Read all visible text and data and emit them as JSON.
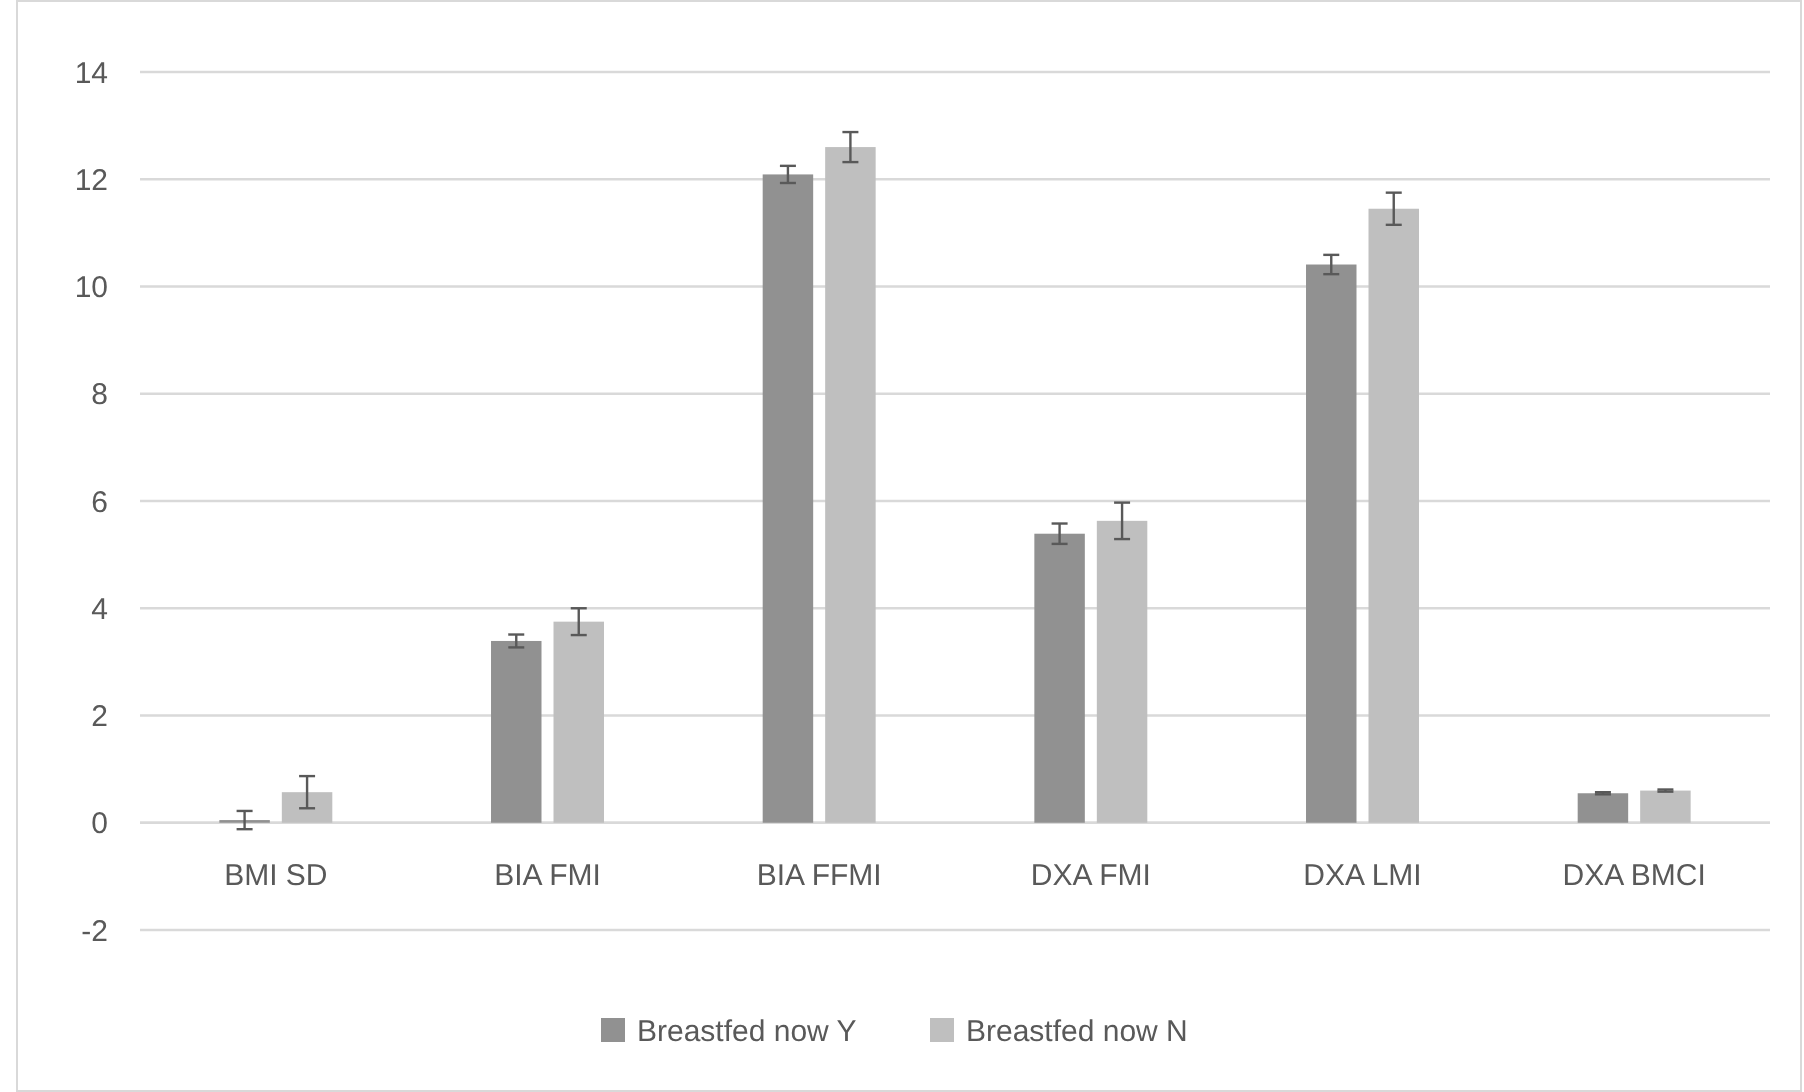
{
  "chart_data": {
    "type": "bar",
    "categories": [
      "BMI SD",
      "BIA FMI",
      "BIA FFMI",
      "DXA FMI",
      "DXA LMI",
      "DXA BMCI"
    ],
    "series": [
      {
        "name": "Breastfed now Y",
        "color": "#919191",
        "values": [
          0.05,
          3.39,
          12.09,
          5.39,
          10.41,
          0.55
        ],
        "errors": [
          0.17,
          0.12,
          0.16,
          0.19,
          0.18,
          0.02
        ]
      },
      {
        "name": "Breastfed now N",
        "color": "#bfbfbf",
        "values": [
          0.57,
          3.75,
          12.6,
          5.63,
          11.45,
          0.6
        ],
        "errors": [
          0.3,
          0.25,
          0.28,
          0.34,
          0.3,
          0.02
        ]
      }
    ],
    "ylim": [
      -2,
      14
    ],
    "yticks": [
      -2,
      0,
      2,
      4,
      6,
      8,
      10,
      12,
      14
    ],
    "grid": "y",
    "legend": "bottom"
  }
}
